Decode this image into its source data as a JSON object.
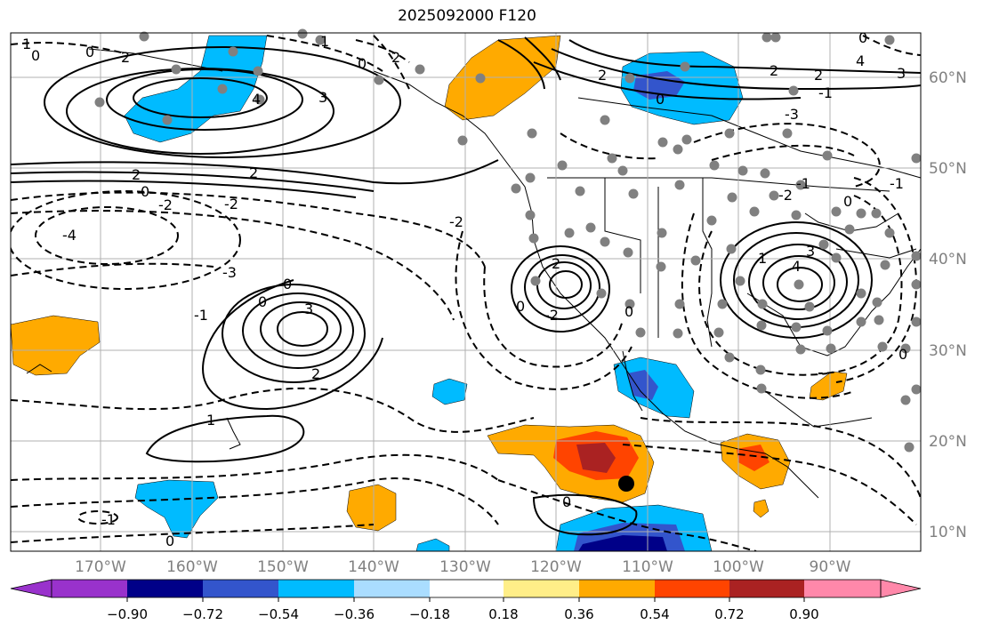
{
  "title": "2025092000 F120",
  "longitude_labels": [
    "170°W",
    "160°W",
    "150°W",
    "140°W",
    "130°W",
    "120°W",
    "110°W",
    "100°W",
    "90°W"
  ],
  "latitude_labels": [
    "60°N",
    "50°N",
    "40°N",
    "30°N",
    "20°N",
    "10°N"
  ],
  "colorbar": {
    "tick_labels": [
      "−0.90",
      "−0.72",
      "−0.54",
      "−0.36",
      "−0.18",
      "0.18",
      "0.36",
      "0.54",
      "0.72",
      "0.90"
    ],
    "colors": [
      "#9932cc",
      "#000088",
      "#3355cc",
      "#00bbff",
      "#aaddff",
      "#ffffff",
      "#ffee88",
      "#ffaa00",
      "#ff4400",
      "#aa2222",
      "#ff88aa"
    ]
  },
  "contour_labels": [
    "1",
    "0",
    "2",
    "3",
    "4",
    "-1",
    "-2",
    "-3",
    "-4"
  ],
  "colors": {
    "land_line": "#000000",
    "grid": "#b0b0b0",
    "station": "#808080",
    "marker": "#000000"
  }
}
